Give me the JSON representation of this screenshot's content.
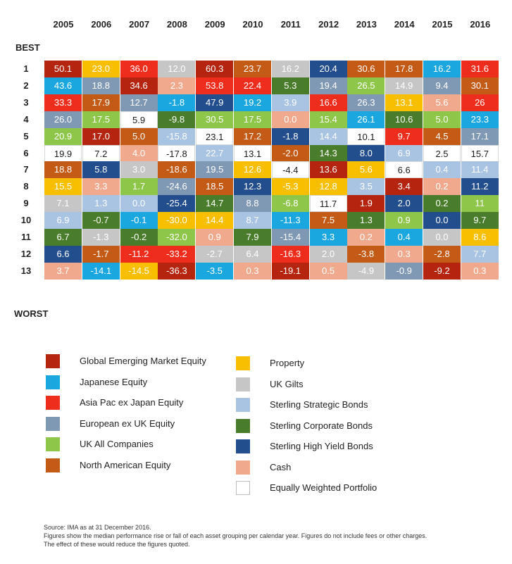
{
  "chart_data": {
    "type": "table",
    "title": "",
    "best_label": "BEST",
    "worst_label": "WORST",
    "years": [
      "2005",
      "2006",
      "2007",
      "2008",
      "2009",
      "2010",
      "2011",
      "2012",
      "2013",
      "2014",
      "2015",
      "2016"
    ],
    "ranks": [
      "1",
      "2",
      "3",
      "4",
      "5",
      "6",
      "7",
      "8",
      "9",
      "10",
      "11",
      "12",
      "13"
    ],
    "colors": {
      "GEM": "#b5240f",
      "JPN": "#1aa7e0",
      "APX": "#ee2d1d",
      "EUR": "#7f98b4",
      "UKA": "#8ec64a",
      "NAM": "#c35a16",
      "PROP": "#f8bf00",
      "GILT": "#c6c6c6",
      "SSB": "#a8c4e2",
      "SCB": "#4a7d2b",
      "HYB": "#234e8d",
      "CASH": "#f1a98d",
      "EWP": "#ffffff"
    },
    "columns": [
      [
        [
          "50.1",
          "GEM"
        ],
        [
          "43.6",
          "JPN"
        ],
        [
          "33.3",
          "APX"
        ],
        [
          "26.0",
          "EUR"
        ],
        [
          "20.9",
          "UKA"
        ],
        [
          "19.9",
          "EWP"
        ],
        [
          "18.8",
          "NAM"
        ],
        [
          "15.5",
          "PROP"
        ],
        [
          "7.1",
          "GILT"
        ],
        [
          "6.9",
          "SSB"
        ],
        [
          "6.7",
          "SCB"
        ],
        [
          "6.6",
          "HYB"
        ],
        [
          "3.7",
          "CASH"
        ]
      ],
      [
        [
          "23.0",
          "PROP"
        ],
        [
          "18.8",
          "EUR"
        ],
        [
          "17.9",
          "NAM"
        ],
        [
          "17.5",
          "UKA"
        ],
        [
          "17.0",
          "GEM"
        ],
        [
          "7.2",
          "EWP"
        ],
        [
          "5.8",
          "HYB"
        ],
        [
          "3.3",
          "CASH"
        ],
        [
          "1.3",
          "SSB"
        ],
        [
          "-0.7",
          "SCB"
        ],
        [
          "-1.3",
          "GILT"
        ],
        [
          "-1.7",
          "NAM"
        ],
        [
          "-14.1",
          "JPN"
        ]
      ],
      [
        [
          "36.0",
          "APX"
        ],
        [
          "34.6",
          "GEM"
        ],
        [
          "12.7",
          "EUR"
        ],
        [
          "5.9",
          "EWP"
        ],
        [
          "5.0",
          "NAM"
        ],
        [
          "4.0",
          "CASH"
        ],
        [
          "3.0",
          "GILT"
        ],
        [
          "1.7",
          "UKA"
        ],
        [
          "0.0",
          "SSB"
        ],
        [
          "-0.1",
          "JPN"
        ],
        [
          "-0.2",
          "SCB"
        ],
        [
          "-11.2",
          "APX"
        ],
        [
          "-14.5",
          "PROP"
        ]
      ],
      [
        [
          "12.0",
          "GILT"
        ],
        [
          "2.3",
          "CASH"
        ],
        [
          "-1.8",
          "JPN"
        ],
        [
          "-9.8",
          "SCB"
        ],
        [
          "-15.8",
          "SSB"
        ],
        [
          "-17.8",
          "EWP"
        ],
        [
          "-18.6",
          "NAM"
        ],
        [
          "-24.6",
          "EUR"
        ],
        [
          "-25.4",
          "HYB"
        ],
        [
          "-30.0",
          "PROP"
        ],
        [
          "-32.0",
          "UKA"
        ],
        [
          "-33.2",
          "APX"
        ],
        [
          "-36.3",
          "GEM"
        ]
      ],
      [
        [
          "60.3",
          "GEM"
        ],
        [
          "53.8",
          "APX"
        ],
        [
          "47.9",
          "HYB"
        ],
        [
          "30.5",
          "UKA"
        ],
        [
          "23.1",
          "EWP"
        ],
        [
          "22.7",
          "SSB"
        ],
        [
          "19.5",
          "EUR"
        ],
        [
          "18.5",
          "NAM"
        ],
        [
          "14.7",
          "SCB"
        ],
        [
          "14.4",
          "PROP"
        ],
        [
          "0.9",
          "CASH"
        ],
        [
          "-2.7",
          "GILT"
        ],
        [
          "-3.5",
          "JPN"
        ]
      ],
      [
        [
          "23.7",
          "NAM"
        ],
        [
          "22.4",
          "APX"
        ],
        [
          "19.2",
          "JPN"
        ],
        [
          "17.5",
          "UKA"
        ],
        [
          "17.2",
          "NAM"
        ],
        [
          "13.1",
          "EWP"
        ],
        [
          "12.6",
          "PROP"
        ],
        [
          "12.3",
          "HYB"
        ],
        [
          "8.8",
          "EUR"
        ],
        [
          "8.7",
          "SSB"
        ],
        [
          "7.9",
          "SCB"
        ],
        [
          "6.4",
          "GILT"
        ],
        [
          "0.3",
          "CASH"
        ]
      ],
      [
        [
          "16.2",
          "GILT"
        ],
        [
          "5.3",
          "SCB"
        ],
        [
          "3.9",
          "SSB"
        ],
        [
          "0.0",
          "CASH"
        ],
        [
          "-1.8",
          "HYB"
        ],
        [
          "-2.0",
          "NAM"
        ],
        [
          "-4.4",
          "EWP"
        ],
        [
          "-5.3",
          "PROP"
        ],
        [
          "-6.8",
          "UKA"
        ],
        [
          "-11.3",
          "JPN"
        ],
        [
          "-15.4",
          "EUR"
        ],
        [
          "-16.3",
          "APX"
        ],
        [
          "-19.1",
          "GEM"
        ]
      ],
      [
        [
          "20.4",
          "HYB"
        ],
        [
          "19.4",
          "EUR"
        ],
        [
          "16.6",
          "APX"
        ],
        [
          "15.4",
          "UKA"
        ],
        [
          "14.4",
          "SSB"
        ],
        [
          "14.3",
          "SCB"
        ],
        [
          "13.6",
          "GEM"
        ],
        [
          "12.8",
          "PROP"
        ],
        [
          "11.7",
          "EWP"
        ],
        [
          "7.5",
          "NAM"
        ],
        [
          "3.3",
          "JPN"
        ],
        [
          "2.0",
          "GILT"
        ],
        [
          "0.5",
          "CASH"
        ]
      ],
      [
        [
          "30.6",
          "NAM"
        ],
        [
          "26.5",
          "UKA"
        ],
        [
          "26.3",
          "EUR"
        ],
        [
          "26.1",
          "JPN"
        ],
        [
          "10.1",
          "EWP"
        ],
        [
          "8.0",
          "HYB"
        ],
        [
          "5.6",
          "PROP"
        ],
        [
          "3.5",
          "SSB"
        ],
        [
          "1.9",
          "GEM"
        ],
        [
          "1.3",
          "SCB"
        ],
        [
          "0.2",
          "CASH"
        ],
        [
          "-3.8",
          "NAM"
        ],
        [
          "-4.9",
          "GILT"
        ]
      ],
      [
        [
          "17.8",
          "NAM"
        ],
        [
          "14.9",
          "GILT"
        ],
        [
          "13.1",
          "PROP"
        ],
        [
          "10.6",
          "SCB"
        ],
        [
          "9.7",
          "APX"
        ],
        [
          "6.9",
          "SSB"
        ],
        [
          "6.6",
          "EWP"
        ],
        [
          "3.4",
          "GEM"
        ],
        [
          "2.0",
          "HYB"
        ],
        [
          "0.9",
          "UKA"
        ],
        [
          "0.4",
          "JPN"
        ],
        [
          "0.3",
          "CASH"
        ],
        [
          "-0.9",
          "EUR"
        ]
      ],
      [
        [
          "16.2",
          "JPN"
        ],
        [
          "9.4",
          "EUR"
        ],
        [
          "5.6",
          "CASH"
        ],
        [
          "5.0",
          "UKA"
        ],
        [
          "4.5",
          "NAM"
        ],
        [
          "2.5",
          "EWP"
        ],
        [
          "0.4",
          "SSB"
        ],
        [
          "0.2",
          "CASH"
        ],
        [
          "0.2",
          "SCB"
        ],
        [
          "0.0",
          "HYB"
        ],
        [
          "0.0",
          "GILT"
        ],
        [
          "-2.8",
          "NAM"
        ],
        [
          "-9.2",
          "GEM"
        ]
      ],
      [
        [
          "31.6",
          "APX"
        ],
        [
          "30.1",
          "NAM"
        ],
        [
          "26",
          "APX"
        ],
        [
          "23.3",
          "JPN"
        ],
        [
          "17.1",
          "EUR"
        ],
        [
          "15.7",
          "EWP"
        ],
        [
          "11.4",
          "SSB"
        ],
        [
          "11.2",
          "HYB"
        ],
        [
          "11",
          "UKA"
        ],
        [
          "9.7",
          "SCB"
        ],
        [
          "8.6",
          "PROP"
        ],
        [
          "7.7",
          "SSB"
        ],
        [
          "0.3",
          "CASH"
        ]
      ]
    ],
    "legend": [
      {
        "key": "GEM",
        "label": "Global Emerging Market Equity"
      },
      {
        "key": "JPN",
        "label": "Japanese Equity"
      },
      {
        "key": "APX",
        "label": "Asia Pac ex Japan Equity"
      },
      {
        "key": "EUR",
        "label": "European ex UK Equity"
      },
      {
        "key": "UKA",
        "label": "UK All Companies"
      },
      {
        "key": "NAM",
        "label": "North American Equity"
      },
      {
        "key": "PROP",
        "label": "Property"
      },
      {
        "key": "GILT",
        "label": "UK Gilts"
      },
      {
        "key": "SSB",
        "label": "Sterling Strategic Bonds"
      },
      {
        "key": "SCB",
        "label": "Sterling Corporate Bonds"
      },
      {
        "key": "HYB",
        "label": "Sterling High Yield Bonds"
      },
      {
        "key": "CASH",
        "label": "Cash"
      },
      {
        "key": "EWP",
        "label": "Equally Weighted Portfolio"
      }
    ]
  },
  "footnotes": [
    "Source: IMA as at 31 December 2016.",
    "Figures show the median performance rise or fall of each asset grouping per calendar year. Figures do not include fees or other charges.",
    "The effect of these would reduce the figures quoted."
  ]
}
